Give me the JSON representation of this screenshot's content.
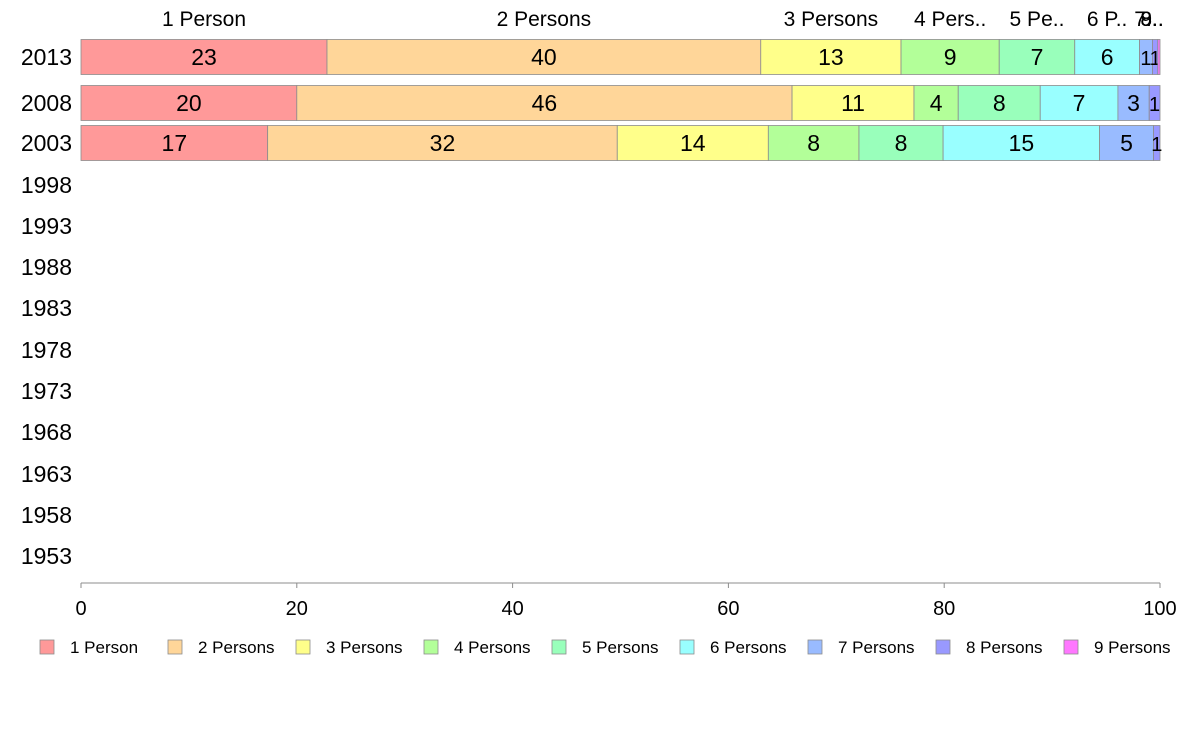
{
  "chart_data": {
    "type": "bar",
    "orientation": "horizontal",
    "stacked": true,
    "categories": [
      "2013",
      "2008",
      "2003",
      "1998",
      "1993",
      "1988",
      "1983",
      "1978",
      "1973",
      "1968",
      "1963",
      "1958",
      "1953"
    ],
    "series": [
      {
        "name": "1 Person",
        "color": "#ff9999",
        "values": [
          22.8,
          20.0,
          17.3,
          null,
          null,
          null,
          null,
          null,
          null,
          null,
          null,
          null,
          null
        ],
        "labels": [
          "23",
          "20",
          "17"
        ]
      },
      {
        "name": "2 Persons",
        "color": "#ffd699",
        "values": [
          40.2,
          45.9,
          32.4,
          null,
          null,
          null,
          null,
          null,
          null,
          null,
          null,
          null,
          null
        ],
        "labels": [
          "40",
          "46",
          "32"
        ]
      },
      {
        "name": "3 Persons",
        "color": "#ffff8a",
        "values": [
          13.0,
          11.3,
          14.0,
          null,
          null,
          null,
          null,
          null,
          null,
          null,
          null,
          null,
          null
        ],
        "labels": [
          "13",
          "11",
          "14"
        ]
      },
      {
        "name": "4 Persons",
        "color": "#b3ff99",
        "values": [
          9.1,
          4.1,
          8.4,
          null,
          null,
          null,
          null,
          null,
          null,
          null,
          null,
          null,
          null
        ],
        "labels": [
          "9",
          "4",
          "8"
        ]
      },
      {
        "name": "5 Persons",
        "color": "#99ffbb",
        "values": [
          7.0,
          7.6,
          7.8,
          null,
          null,
          null,
          null,
          null,
          null,
          null,
          null,
          null,
          null
        ],
        "labels": [
          "7",
          "8",
          "8"
        ]
      },
      {
        "name": "6 Persons",
        "color": "#99ffff",
        "values": [
          6.0,
          7.2,
          14.5,
          null,
          null,
          null,
          null,
          null,
          null,
          null,
          null,
          null,
          null
        ],
        "labels": [
          "6",
          "7",
          "15"
        ]
      },
      {
        "name": "7 Persons",
        "color": "#99bbff",
        "values": [
          1.2,
          2.9,
          5.0,
          null,
          null,
          null,
          null,
          null,
          null,
          null,
          null,
          null,
          null
        ],
        "labels": [
          "1",
          "3",
          "5"
        ]
      },
      {
        "name": "8 Persons",
        "color": "#9999ff",
        "values": [
          0.5,
          1.0,
          0.6,
          null,
          null,
          null,
          null,
          null,
          null,
          null,
          null,
          null,
          null
        ],
        "labels": [
          "1",
          "1",
          "1"
        ]
      },
      {
        "name": "9 Persons",
        "color": "#ff77ff",
        "values": [
          0.2,
          0.0,
          0.0,
          null,
          null,
          null,
          null,
          null,
          null,
          null,
          null,
          null,
          null
        ],
        "labels": [
          "",
          "",
          ""
        ]
      }
    ],
    "top_labels": [
      "1 Person",
      "2 Persons",
      "3 Persons",
      "4 Pers..",
      "5 Pe..",
      "6 P..",
      "7..",
      "8..",
      "9.."
    ],
    "xlim": [
      0,
      100
    ],
    "xticks": [
      0,
      20,
      40,
      60,
      80,
      100
    ],
    "grid": false,
    "legend": "bottom"
  }
}
